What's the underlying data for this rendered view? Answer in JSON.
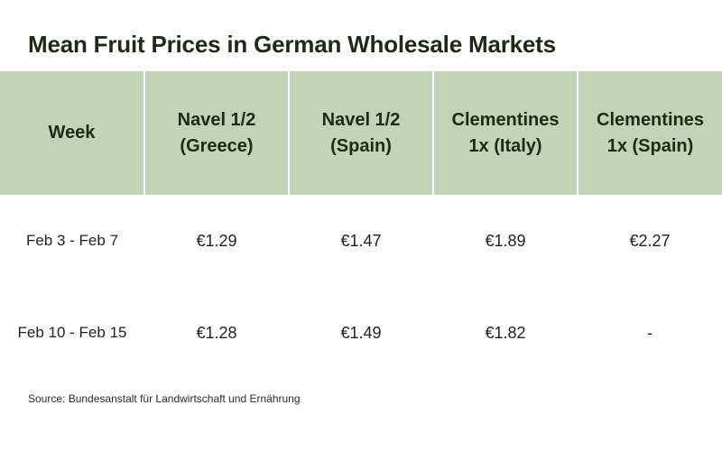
{
  "title": "Mean Fruit Prices in German Wholesale Markets",
  "source": "Source: Bundesanstalt für Landwirtschaft und Ernährung",
  "colors": {
    "header_bg": "#c3d3b6",
    "title": "#1e2a14"
  },
  "table": {
    "headers": [
      [
        "Week"
      ],
      [
        "Navel 1/2",
        "(Greece)"
      ],
      [
        "Navel 1/2",
        "(Spain)"
      ],
      [
        "Clementines",
        "1x (Italy)"
      ],
      [
        "Clementines",
        "1x (Spain)"
      ]
    ],
    "rows": [
      [
        "Feb 3 - Feb 7",
        "€1.29",
        "€1.47",
        "€1.89",
        "€2.27"
      ],
      [
        "Feb 10 - Feb 15",
        "€1.28",
        "€1.49",
        "€1.82",
        "-"
      ]
    ]
  },
  "chart_data": {
    "type": "table",
    "title": "Mean Fruit Prices in German Wholesale Markets",
    "columns": [
      "Week",
      "Navel 1/2 (Greece)",
      "Navel 1/2 (Spain)",
      "Clementines 1x (Italy)",
      "Clementines 1x (Spain)"
    ],
    "rows": [
      {
        "week": "Feb 3 - Feb 7",
        "values": [
          1.29,
          1.47,
          1.89,
          2.27
        ]
      },
      {
        "week": "Feb 10 - Feb 15",
        "values": [
          1.28,
          1.49,
          1.82,
          null
        ]
      }
    ]
  }
}
